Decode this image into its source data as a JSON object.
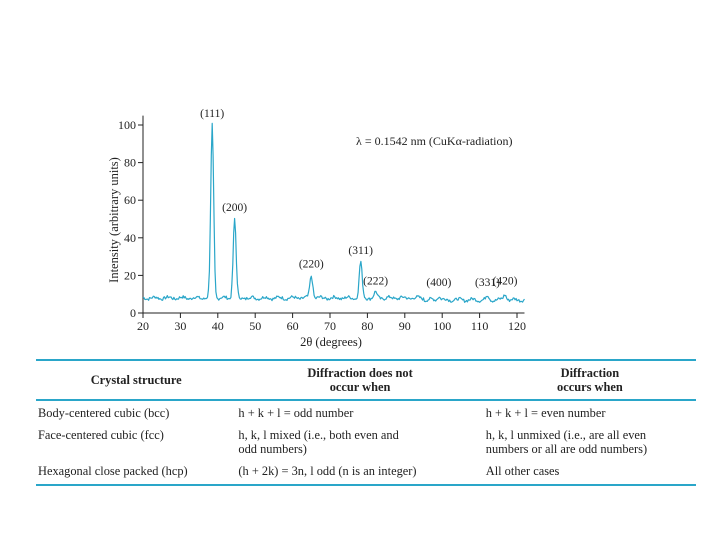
{
  "chart_data": {
    "type": "line",
    "xlabel": "2θ (degrees)",
    "ylabel": "Intensity (arbitrary units)",
    "xlim": [
      20,
      122
    ],
    "ylim": [
      0,
      105
    ],
    "x_ticks": [
      20,
      30,
      40,
      50,
      60,
      70,
      80,
      90,
      100,
      110,
      120
    ],
    "y_ticks": [
      0,
      20,
      40,
      60,
      80,
      100
    ],
    "annotation": "λ = 0.1542 nm (CuKα-radiation)",
    "series_color": "#2aa6c9",
    "baseline": 8,
    "peaks": [
      {
        "label": "(111)",
        "x": 38.5,
        "y": 100
      },
      {
        "label": "(200)",
        "x": 44.5,
        "y": 50
      },
      {
        "label": "(220)",
        "x": 65.0,
        "y": 20
      },
      {
        "label": "(311)",
        "x": 78.2,
        "y": 27
      },
      {
        "label": "(222)",
        "x": 82.2,
        "y": 11
      },
      {
        "label": "(400)",
        "x": 99.1,
        "y": 10
      },
      {
        "label": "(331)",
        "x": 112.1,
        "y": 10
      },
      {
        "label": "(420)",
        "x": 116.8,
        "y": 11
      }
    ]
  },
  "table": {
    "headers": [
      "Crystal structure",
      "Diffraction does not\noccur when",
      "Diffraction\noccurs when"
    ],
    "rows": [
      [
        "Body-centered cubic (bcc)",
        "h + k + l = odd number",
        "h + k + l = even number"
      ],
      [
        "Face-centered cubic (fcc)",
        "h, k, l mixed (i.e., both even and\n   odd numbers)",
        "h, k, l unmixed (i.e., are all even\n   numbers or all are odd numbers)"
      ],
      [
        "Hexagonal close packed (hcp)",
        "(h + 2k) = 3n, l odd (n is an integer)",
        "All other cases"
      ]
    ],
    "rule_color": "#2aa6c9"
  }
}
